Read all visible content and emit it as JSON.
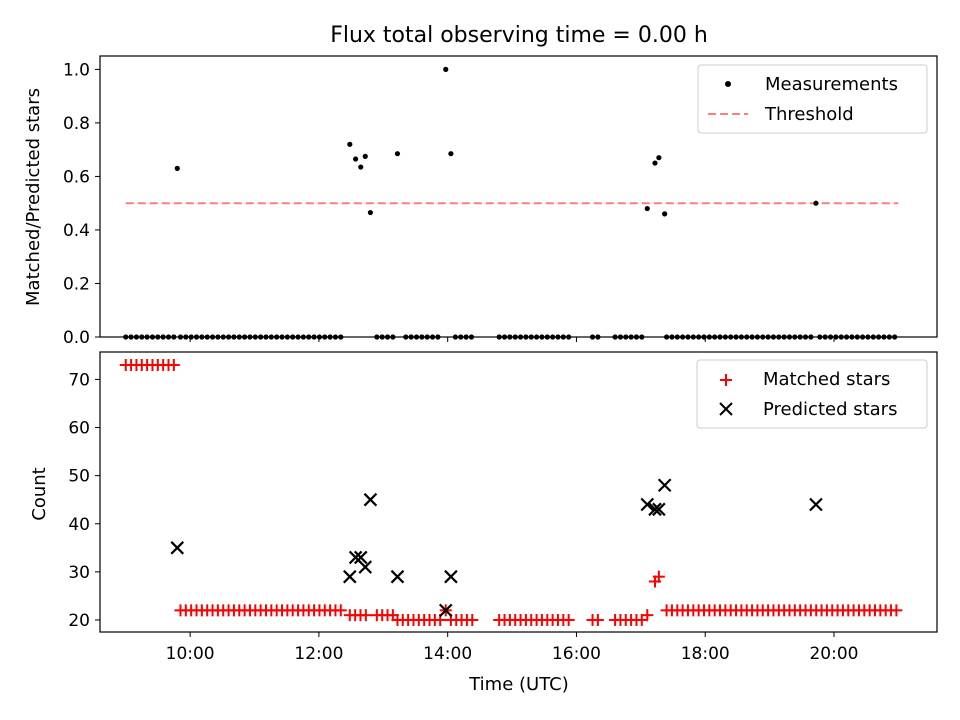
{
  "chart_data": [
    {
      "type": "scatter",
      "title": "Flux total observing time = 0.00 h",
      "ylabel": "Matched/Predicted stars",
      "xlabel": "",
      "x_unit": "hours (UTC)",
      "xlim": [
        8.6,
        21.6
      ],
      "ylim": [
        0,
        1.05
      ],
      "yticks": [
        0.0,
        0.2,
        0.4,
        0.6,
        0.8,
        1.0
      ],
      "ytick_labels": [
        "0.0",
        "0.2",
        "0.4",
        "0.6",
        "0.8",
        "1.0"
      ],
      "grid": false,
      "legend_position": "top-right",
      "threshold": {
        "name": "Threshold",
        "y": 0.5,
        "x": [
          9.0,
          21.0
        ],
        "color": "#ff7f7f",
        "style": "dashed"
      },
      "series": [
        {
          "name": "Measurements",
          "color": "#000000",
          "marker": "dot",
          "points": [
            [
              9.8,
              0.63
            ],
            [
              12.48,
              0.72
            ],
            [
              12.57,
              0.665
            ],
            [
              12.65,
              0.635
            ],
            [
              12.72,
              0.675
            ],
            [
              12.8,
              0.465
            ],
            [
              13.22,
              0.685
            ],
            [
              13.97,
              1.0
            ],
            [
              14.05,
              0.685
            ],
            [
              17.1,
              0.48
            ],
            [
              17.22,
              0.65
            ],
            [
              17.28,
              0.67
            ],
            [
              17.37,
              0.46
            ],
            [
              19.72,
              0.5
            ]
          ],
          "zero_segments": [
            [
              9.0,
              9.75,
              0.083
            ],
            [
              9.85,
              12.42,
              0.083
            ],
            [
              12.9,
              13.2,
              0.083
            ],
            [
              13.35,
              13.92,
              0.083
            ],
            [
              14.12,
              14.4,
              0.083
            ],
            [
              14.8,
              15.95,
              0.083
            ],
            [
              16.25,
              16.35,
              0.083
            ],
            [
              16.6,
              17.05,
              0.083
            ],
            [
              17.4,
              19.65,
              0.083
            ],
            [
              19.78,
              21.0,
              0.083
            ]
          ]
        }
      ]
    },
    {
      "type": "scatter",
      "title": "",
      "xlabel": "Time (UTC)",
      "ylabel": "Count",
      "xlim": [
        8.6,
        21.6
      ],
      "ylim": [
        17.5,
        75.7
      ],
      "xticks": [
        10,
        12,
        14,
        16,
        18,
        20
      ],
      "xtick_labels": [
        "10:00",
        "12:00",
        "14:00",
        "16:00",
        "18:00",
        "20:00"
      ],
      "yticks": [
        20,
        30,
        40,
        50,
        60,
        70
      ],
      "ytick_labels": [
        "20",
        "30",
        "40",
        "50",
        "60",
        "70"
      ],
      "grid": false,
      "legend_position": "top-right",
      "series": [
        {
          "name": "Matched stars",
          "color": "#ff0000",
          "marker": "plus",
          "segments": [
            [
              9.0,
              9.75,
              0.083,
              73
            ],
            [
              9.85,
              12.42,
              0.083,
              22
            ],
            [
              12.48,
              12.8,
              0.083,
              21
            ],
            [
              12.9,
              13.2,
              0.083,
              21
            ],
            [
              13.22,
              13.92,
              0.083,
              20
            ],
            [
              14.05,
              14.4,
              0.083,
              20
            ],
            [
              14.8,
              15.95,
              0.083,
              20
            ],
            [
              16.25,
              16.35,
              0.083,
              20
            ],
            [
              16.6,
              17.05,
              0.083,
              20
            ],
            [
              17.4,
              21.0,
              0.083,
              22
            ]
          ],
          "points": [
            [
              13.97,
              22
            ],
            [
              17.1,
              21
            ],
            [
              17.22,
              28
            ],
            [
              17.28,
              29
            ]
          ]
        },
        {
          "name": "Predicted stars",
          "color": "#000000",
          "marker": "x",
          "points": [
            [
              9.8,
              35
            ],
            [
              12.48,
              29
            ],
            [
              12.57,
              33
            ],
            [
              12.65,
              33
            ],
            [
              12.72,
              31
            ],
            [
              12.8,
              45
            ],
            [
              13.22,
              29
            ],
            [
              13.97,
              22
            ],
            [
              14.05,
              29
            ],
            [
              17.1,
              44
            ],
            [
              17.22,
              43
            ],
            [
              17.28,
              43
            ],
            [
              17.37,
              48
            ],
            [
              19.72,
              44
            ]
          ]
        }
      ]
    }
  ]
}
